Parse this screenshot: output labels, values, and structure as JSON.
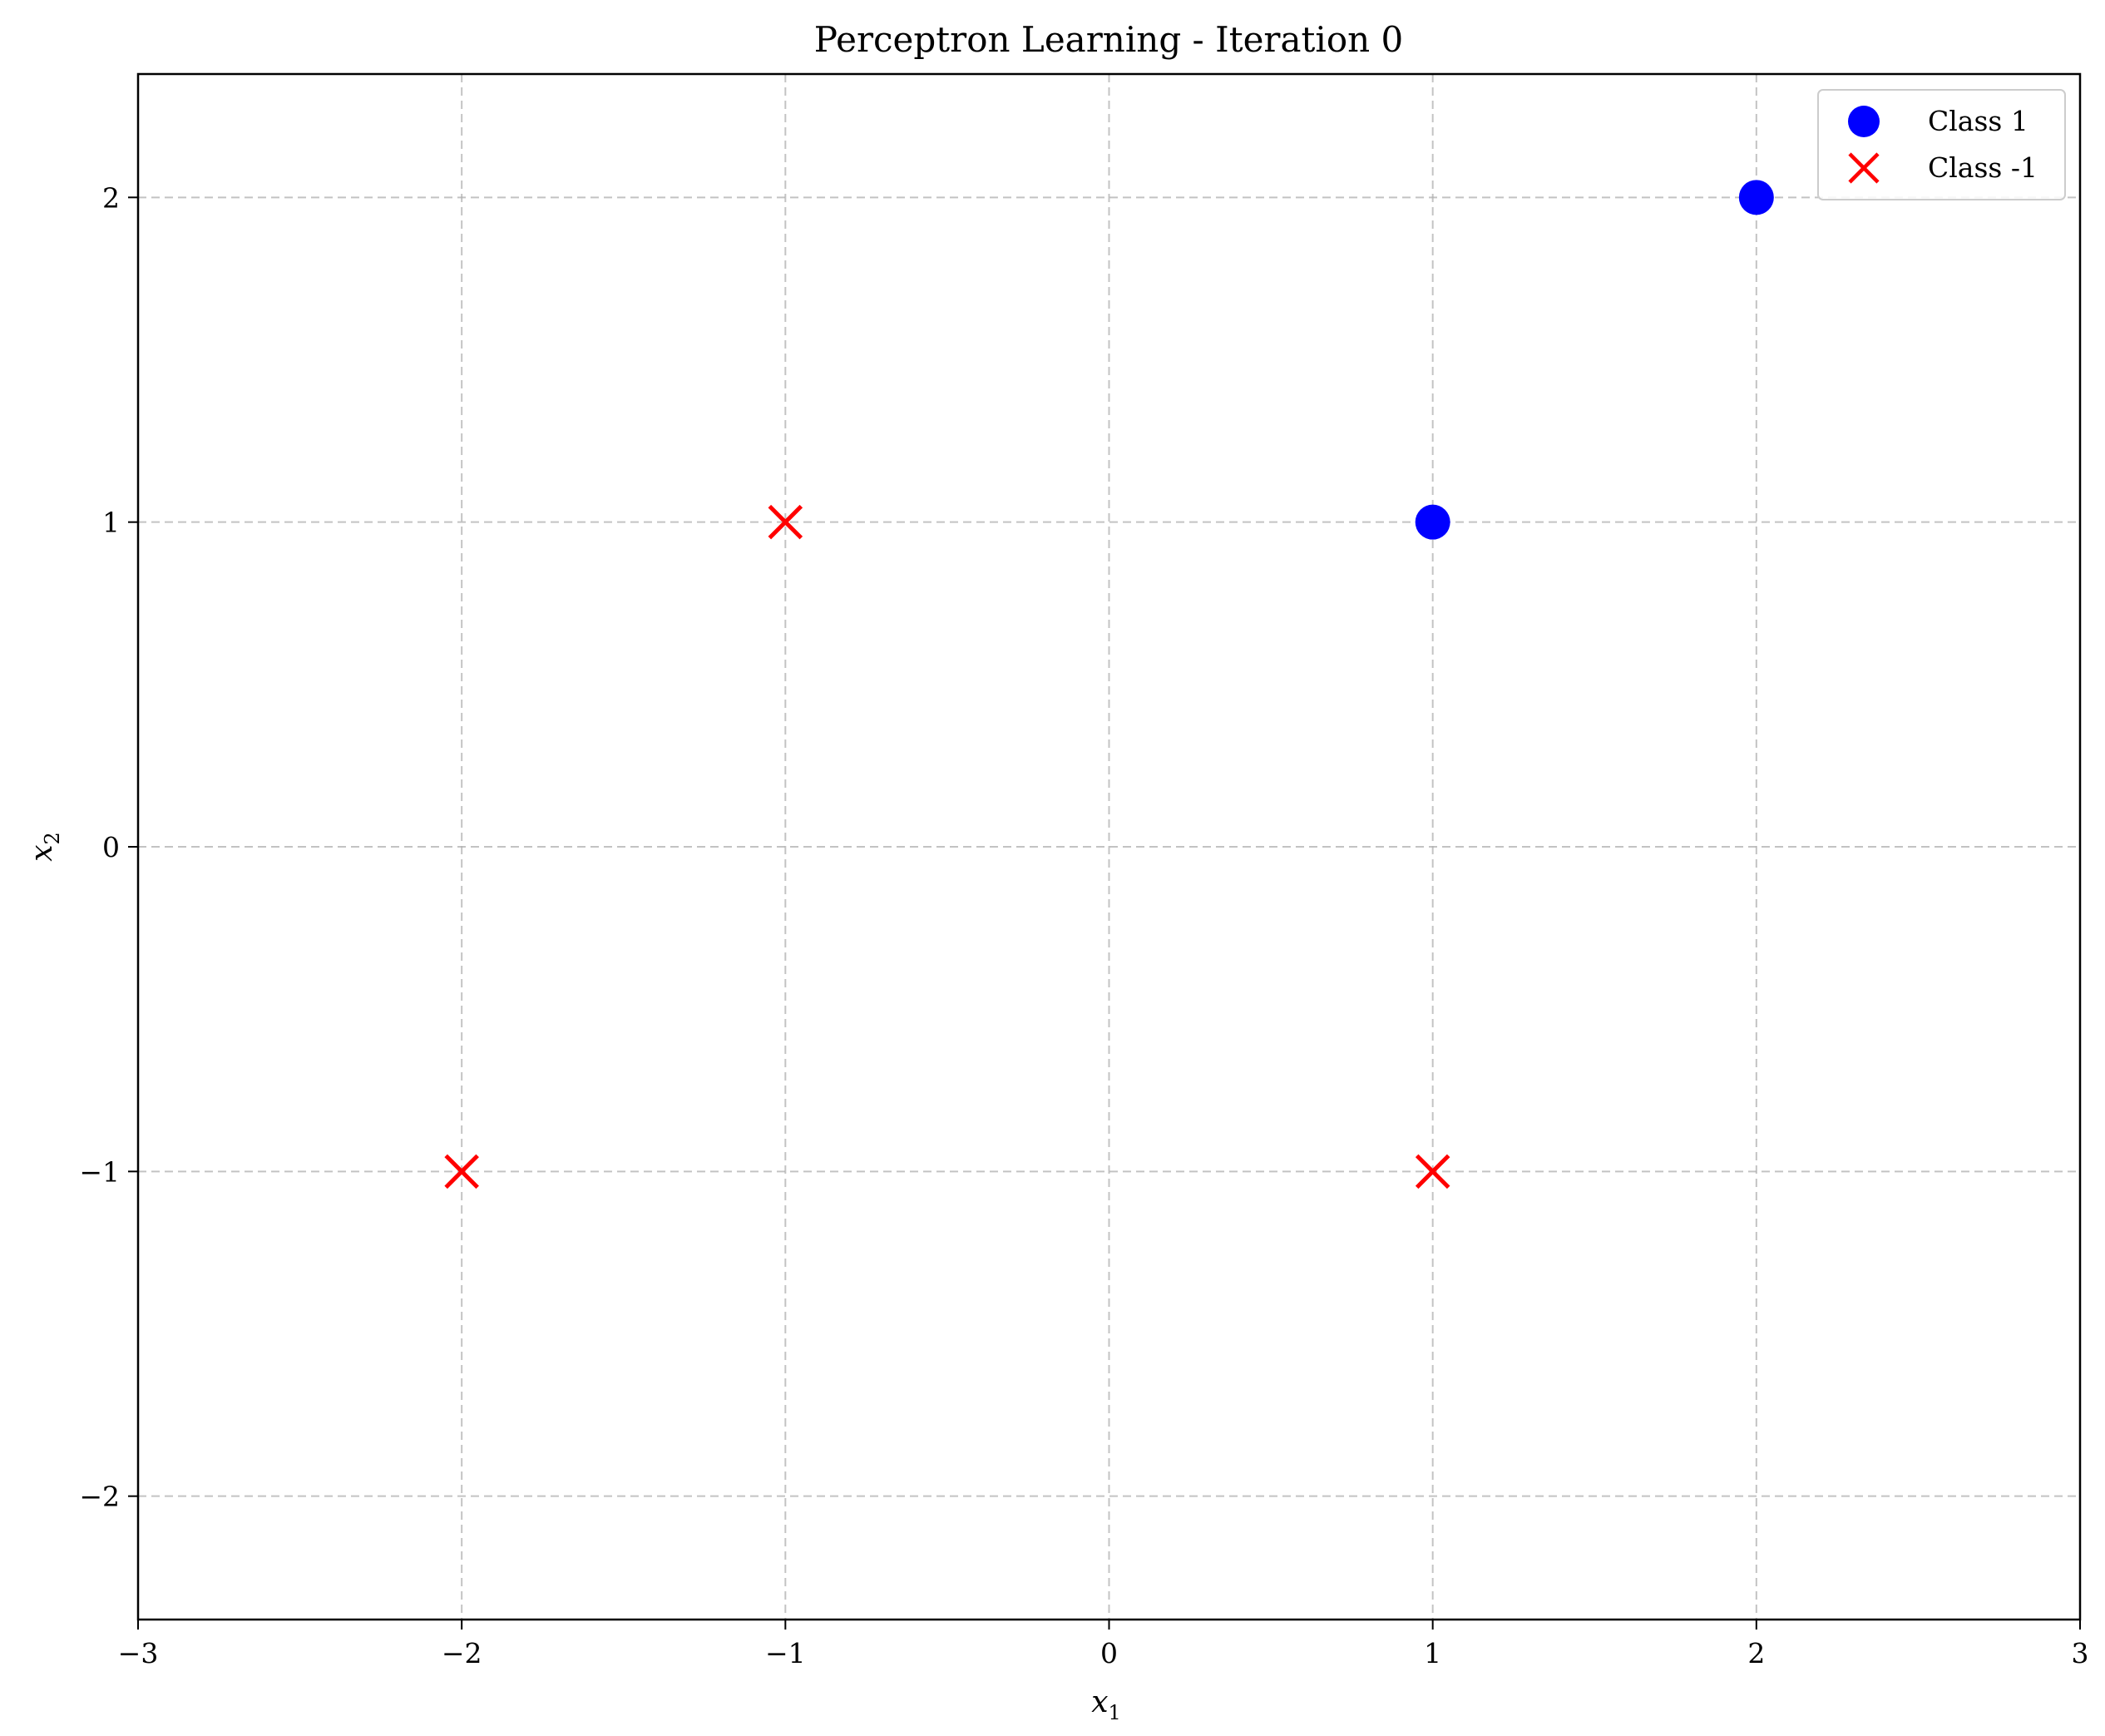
{
  "chart_data": {
    "type": "scatter",
    "title": "Perceptron Learning - Iteration 0",
    "xlabel": "x",
    "xlabel_sub": "1",
    "ylabel": "x",
    "ylabel_sub": "2",
    "xlim": [
      -3,
      3
    ],
    "ylim": [
      -2.38,
      2.38
    ],
    "xticks": [
      -3,
      -2,
      -1,
      0,
      1,
      2,
      3
    ],
    "xtick_labels": [
      "−3",
      "−2",
      "−1",
      "0",
      "1",
      "2",
      "3"
    ],
    "yticks": [
      -2,
      -1,
      0,
      1,
      2
    ],
    "ytick_labels": [
      "−2",
      "−1",
      "0",
      "1",
      "2"
    ],
    "grid": true,
    "legend_position": "top-right",
    "series": [
      {
        "name": "Class 1",
        "marker": "circle",
        "color": "#0000ff",
        "points": [
          {
            "x": 1,
            "y": 1
          },
          {
            "x": 2,
            "y": 2
          }
        ]
      },
      {
        "name": "Class -1",
        "marker": "x",
        "color": "#ff0000",
        "points": [
          {
            "x": -1,
            "y": 1
          },
          {
            "x": -2,
            "y": -1
          },
          {
            "x": 1,
            "y": -1
          }
        ]
      }
    ]
  }
}
